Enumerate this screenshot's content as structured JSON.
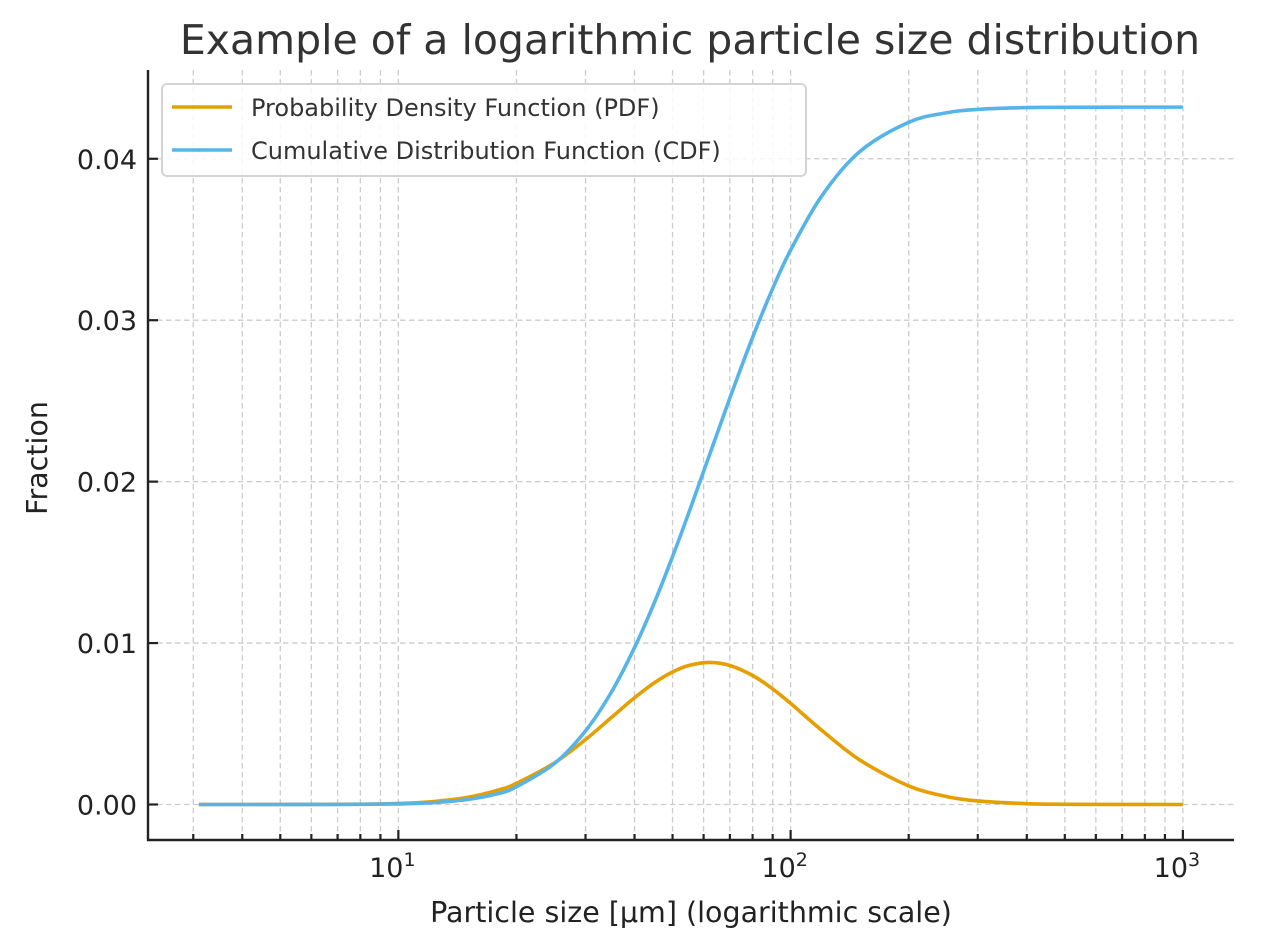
{
  "chart_data": {
    "type": "line",
    "title": "Example of a logarithmic particle size distribution",
    "xlabel": "Particle size [μm] (logarithmic scale)",
    "ylabel": "Fraction",
    "xscale": "log",
    "xlim": [
      2.3,
      1350
    ],
    "ylim": [
      -0.0022,
      0.0455
    ],
    "x_ticks": [
      {
        "value": 10,
        "base": "10",
        "exp": "1"
      },
      {
        "value": 100,
        "base": "10",
        "exp": "2"
      },
      {
        "value": 1000,
        "base": "10",
        "exp": "3"
      }
    ],
    "y_ticks": [
      {
        "value": 0.0,
        "label": "0.00"
      },
      {
        "value": 0.01,
        "label": "0.01"
      },
      {
        "value": 0.02,
        "label": "0.02"
      },
      {
        "value": 0.03,
        "label": "0.03"
      },
      {
        "value": 0.04,
        "label": "0.04"
      }
    ],
    "grid": true,
    "legend_position": "upper-left",
    "x": [
      3.1,
      4,
      5,
      6,
      8,
      10,
      12,
      15,
      18,
      20,
      25,
      30,
      35,
      40,
      45,
      50,
      55,
      62,
      70,
      80,
      90,
      100,
      120,
      150,
      200,
      250,
      300,
      400,
      500,
      700,
      1000
    ],
    "series": [
      {
        "name": "Probability Density Function (PDF)",
        "color": "#E69F00",
        "values": [
          0.0,
          0.0,
          7e-07,
          4e-06,
          1.7e-05,
          6.25e-05,
          0.00016,
          0.00044,
          0.0009,
          0.00131,
          0.00258,
          0.00402,
          0.00541,
          0.00661,
          0.00755,
          0.00821,
          0.00861,
          0.0088,
          0.00861,
          0.00799,
          0.00716,
          0.00626,
          0.0046,
          0.00276,
          0.00115,
          0.00049,
          0.00022,
          5e-05,
          1.36e-05,
          1.5e-06,
          0.0
        ]
      },
      {
        "name": "Cumulative Distribution Function (CDF)",
        "color": "#56B4E9",
        "values": [
          0.0,
          0.0,
          0.0,
          1e-06,
          1e-05,
          3.6e-05,
          0.0001,
          0.00031,
          0.00068,
          0.0011,
          0.00254,
          0.00456,
          0.007,
          0.00972,
          0.01254,
          0.01535,
          0.01807,
          0.0216,
          0.02518,
          0.02894,
          0.03196,
          0.03434,
          0.03769,
          0.04044,
          0.04226,
          0.04285,
          0.04306,
          0.04317,
          0.04319,
          0.0432,
          0.0432
        ]
      }
    ]
  }
}
